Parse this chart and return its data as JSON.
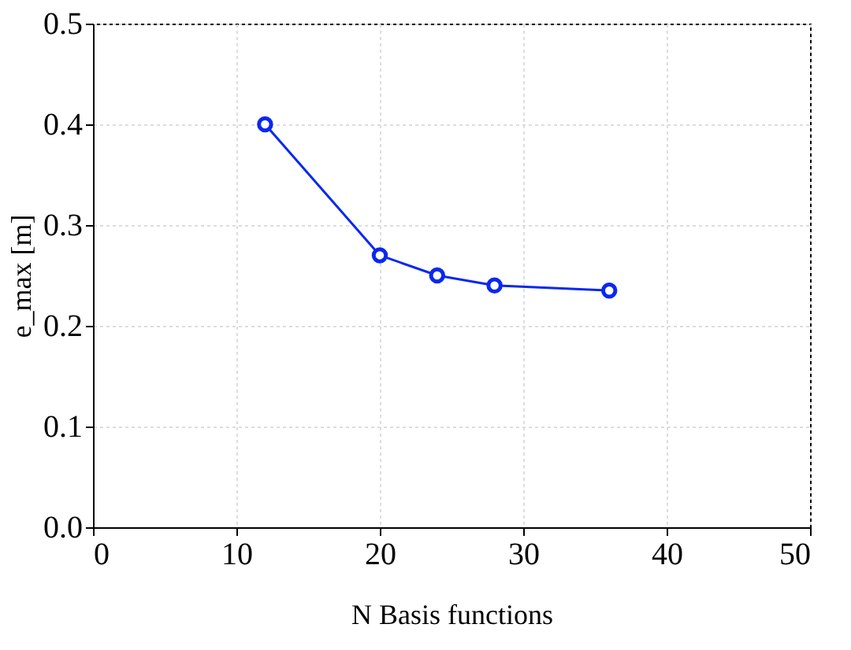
{
  "chart_data": {
    "type": "line",
    "xlabel": "N Basis functions",
    "ylabel": "e_max [m]",
    "x": [
      12,
      20,
      24,
      28,
      36
    ],
    "series": [
      {
        "color": "#0a28f0",
        "values": [
          0.4,
          0.27,
          0.25,
          0.24,
          0.235
        ]
      }
    ],
    "xlim": [
      0,
      50
    ],
    "xticks": [
      0,
      10,
      20,
      30,
      40,
      50
    ],
    "ylim": [
      0,
      0.5
    ],
    "yticks": [
      {
        "value": 0,
        "label": "0.0"
      },
      {
        "value": 0.1,
        "label": "0.1"
      },
      {
        "value": 0.2,
        "label": "0.2"
      },
      {
        "value": 0.3,
        "label": "0.3"
      },
      {
        "value": 0.4,
        "label": "0.4"
      },
      {
        "value": 0.5,
        "label": "0.5"
      }
    ],
    "grid": true,
    "marker": "circle",
    "line_style": "solid"
  }
}
